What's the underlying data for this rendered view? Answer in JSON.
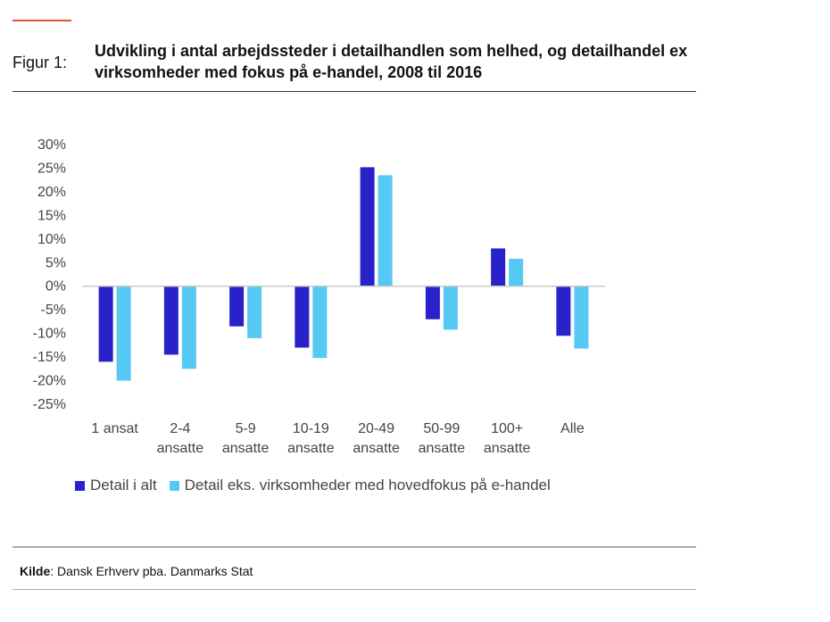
{
  "header": {
    "figure_label": "Figur 1:",
    "title": "Udvikling i antal arbejdssteder i detailhandlen som helhed, og detailhandel ex virksomheder med fokus på e-handel, 2008 til 2016"
  },
  "chart_data": {
    "type": "bar",
    "categories": [
      [
        "1 ansat"
      ],
      [
        "2-4",
        "ansatte"
      ],
      [
        "5-9",
        "ansatte"
      ],
      [
        "10-19",
        "ansatte"
      ],
      [
        "20-49",
        "ansatte"
      ],
      [
        "50-99",
        "ansatte"
      ],
      [
        "100+",
        "ansatte"
      ],
      [
        "Alle"
      ]
    ],
    "series": [
      {
        "name": "Detail i alt",
        "color": "#2a22c9",
        "values": [
          -16,
          -14.5,
          -8.5,
          -13,
          25.2,
          -7,
          8,
          -10.5
        ]
      },
      {
        "name": "Detail eks. virksomheder med hovedfokus på e-handel",
        "color": "#55c8f3",
        "values": [
          -20,
          -17.5,
          -11,
          -15.2,
          23.5,
          -9.2,
          5.8,
          -13.2
        ]
      }
    ],
    "ylim": [
      -25,
      30
    ],
    "yticks": [
      30,
      25,
      20,
      15,
      10,
      5,
      0,
      -5,
      -10,
      -15,
      -20,
      -25
    ],
    "ytick_labels": [
      "30%",
      "25%",
      "20%",
      "15%",
      "10%",
      "5%",
      "0%",
      "-5%",
      "-10%",
      "-15%",
      "-20%",
      "-25%"
    ],
    "grid": false,
    "legend": "bottom"
  },
  "source": {
    "label": "Kilde",
    "text": ": Dansk Erhverv pba. Danmarks Stat"
  }
}
